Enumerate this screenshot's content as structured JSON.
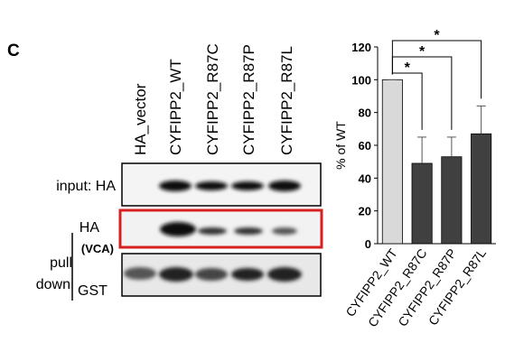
{
  "panel_label": "C",
  "blot": {
    "lanes": [
      "HA_vector",
      "CYFIPP2_WT",
      "CYFIPP2_R87C",
      "CYFIPP2_R87P",
      "CYFIPP2_R87L"
    ],
    "input_label": "input: HA",
    "pulldown_ha_label": "HA",
    "pulldown_vca_label": "(VCA)",
    "pulldown_label_1": "pull",
    "pulldown_label_2": "down",
    "gst_label": "GST"
  },
  "chart_data": {
    "type": "bar",
    "y_label": "% of WT",
    "categories": [
      "CYFIPP2_WT",
      "CYFIPP2_R87C",
      "CYFIPP2_R87P",
      "CYFIPP2_R87L"
    ],
    "values": [
      100,
      49,
      53,
      67
    ],
    "errors": [
      0,
      16,
      12,
      17
    ],
    "colors": [
      "#d9d9d9",
      "#404040",
      "#404040",
      "#404040"
    ],
    "ylim": [
      0,
      120
    ],
    "yticks": [
      0,
      20,
      40,
      60,
      80,
      100,
      120
    ],
    "annotations": [
      "*",
      "*",
      "*"
    ]
  }
}
